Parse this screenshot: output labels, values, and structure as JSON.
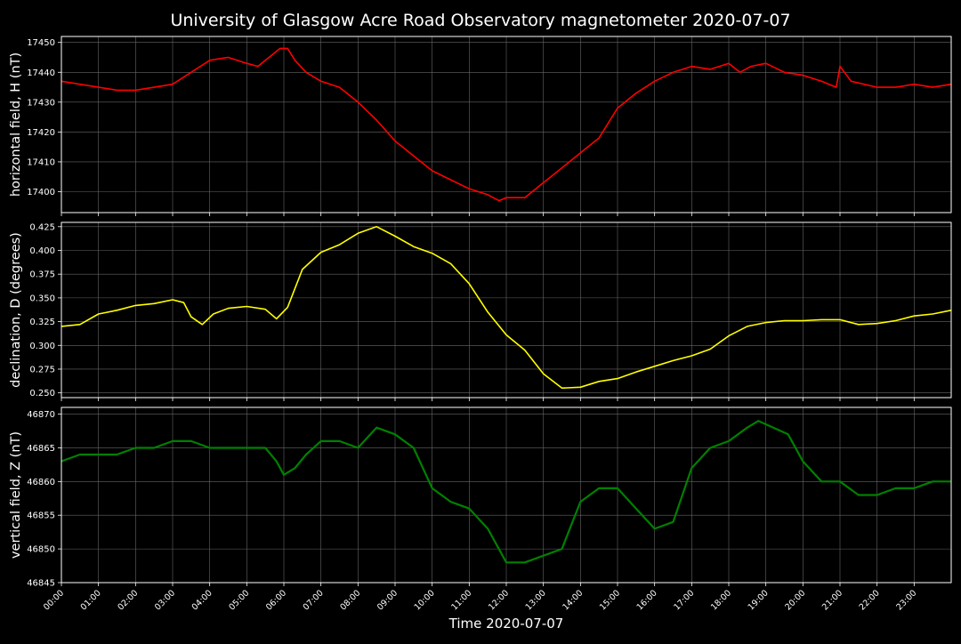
{
  "figure": {
    "title": "University of Glasgow Acre Road Observatory magnetometer 2020-07-07",
    "xlabel": "Time 2020-07-07",
    "x_ticks": [
      "00:00",
      "01:00",
      "02:00",
      "03:00",
      "04:00",
      "05:00",
      "06:00",
      "07:00",
      "08:00",
      "09:00",
      "10:00",
      "11:00",
      "12:00",
      "13:00",
      "14:00",
      "15:00",
      "16:00",
      "17:00",
      "18:00",
      "19:00",
      "20:00",
      "21:00",
      "22:00",
      "23:00"
    ],
    "background": "#000000",
    "grid_color": "#666666"
  },
  "chart_data": [
    {
      "type": "line",
      "ylabel": "horizontal field, H (nT)",
      "color": "#ff0000",
      "ylim": [
        17393,
        17452
      ],
      "yticks": [
        17400,
        17410,
        17420,
        17430,
        17440,
        17450
      ],
      "xlim": [
        0,
        24
      ],
      "grid": true,
      "x": [
        0,
        0.5,
        1,
        1.5,
        2,
        2.5,
        3,
        3.5,
        4,
        4.5,
        5,
        5.3,
        5.6,
        5.9,
        6.1,
        6.3,
        6.6,
        7,
        7.5,
        8,
        8.5,
        9,
        9.5,
        10,
        10.5,
        11,
        11.5,
        11.8,
        12,
        12.5,
        13,
        13.5,
        14,
        14.5,
        15,
        15.5,
        16,
        16.5,
        17,
        17.5,
        18,
        18.3,
        18.6,
        19,
        19.5,
        20,
        20.5,
        20.9,
        21,
        21.3,
        22,
        22.5,
        23,
        23.5,
        24
      ],
      "values": [
        17437,
        17436,
        17435,
        17434,
        17434,
        17435,
        17436,
        17440,
        17444,
        17445,
        17443,
        17442,
        17445,
        17448,
        17448,
        17444,
        17440,
        17437,
        17435,
        17430,
        17424,
        17417,
        17412,
        17407,
        17404,
        17401,
        17399,
        17397,
        17398,
        17398,
        17403,
        17408,
        17413,
        17418,
        17428,
        17433,
        17437,
        17440,
        17442,
        17441,
        17443,
        17440,
        17442,
        17443,
        17440,
        17439,
        17437,
        17435,
        17442,
        17437,
        17435,
        17435,
        17436,
        17435,
        17436
      ]
    },
    {
      "type": "line",
      "ylabel": "declination, D (degrees)",
      "color": "#ffff00",
      "ylim": [
        0.245,
        0.4295
      ],
      "yticks": [
        0.25,
        0.275,
        0.3,
        0.325,
        0.35,
        0.375,
        0.4,
        0.425
      ],
      "xlim": [
        0,
        24
      ],
      "grid": true,
      "x": [
        0,
        0.5,
        1,
        1.5,
        2,
        2.5,
        3,
        3.3,
        3.5,
        3.8,
        4.1,
        4.5,
        5,
        5.5,
        5.8,
        6.1,
        6.5,
        7,
        7.5,
        8,
        8.5,
        9,
        9.5,
        10,
        10.5,
        11,
        11.5,
        12,
        12.5,
        13,
        13.5,
        14,
        14.5,
        15,
        15.5,
        16,
        16.5,
        17,
        17.5,
        18,
        18.5,
        19,
        19.5,
        20,
        20.5,
        21,
        21.5,
        22,
        22.5,
        23,
        23.5,
        24
      ],
      "values": [
        0.32,
        0.322,
        0.333,
        0.337,
        0.342,
        0.344,
        0.348,
        0.345,
        0.33,
        0.322,
        0.333,
        0.339,
        0.341,
        0.338,
        0.328,
        0.34,
        0.38,
        0.398,
        0.406,
        0.418,
        0.425,
        0.415,
        0.404,
        0.397,
        0.386,
        0.365,
        0.335,
        0.311,
        0.295,
        0.27,
        0.255,
        0.256,
        0.262,
        0.265,
        0.272,
        0.278,
        0.284,
        0.289,
        0.296,
        0.31,
        0.32,
        0.324,
        0.326,
        0.326,
        0.327,
        0.327,
        0.322,
        0.323,
        0.326,
        0.331,
        0.333,
        0.337
      ]
    },
    {
      "type": "line",
      "ylabel": "vertical field, Z (nT)",
      "color": "#008000",
      "ylim": [
        46845,
        46871
      ],
      "yticks": [
        46845,
        46850,
        46855,
        46860,
        46865,
        46870
      ],
      "xlim": [
        0,
        24
      ],
      "grid": true,
      "x": [
        0,
        0.5,
        1,
        1.5,
        2,
        2.5,
        3,
        3.5,
        4,
        4.5,
        5,
        5.5,
        5.8,
        6,
        6.3,
        6.6,
        7,
        7.5,
        8,
        8.5,
        9,
        9.5,
        10,
        10.5,
        11,
        11.5,
        12,
        12.5,
        13,
        13.5,
        14,
        14.5,
        15,
        15.5,
        16,
        16.5,
        17,
        17.5,
        18,
        18.5,
        18.8,
        19.2,
        19.6,
        20,
        20.5,
        21,
        21.5,
        22,
        22.5,
        23,
        23.5,
        24
      ],
      "values": [
        46863,
        46864,
        46864,
        46864,
        46865,
        46865,
        46866,
        46866,
        46865,
        46865,
        46865,
        46865,
        46863,
        46861,
        46862,
        46864,
        46866,
        46866,
        46865,
        46868,
        46867,
        46865,
        46859,
        46857,
        46856,
        46853,
        46848,
        46848,
        46849,
        46850,
        46857,
        46859,
        46859,
        46856,
        46853,
        46854,
        46862,
        46865,
        46866,
        46868,
        46869,
        46868,
        46867,
        46863,
        46860,
        46860,
        46858,
        46858,
        46859,
        46859,
        46860,
        46860
      ]
    }
  ]
}
